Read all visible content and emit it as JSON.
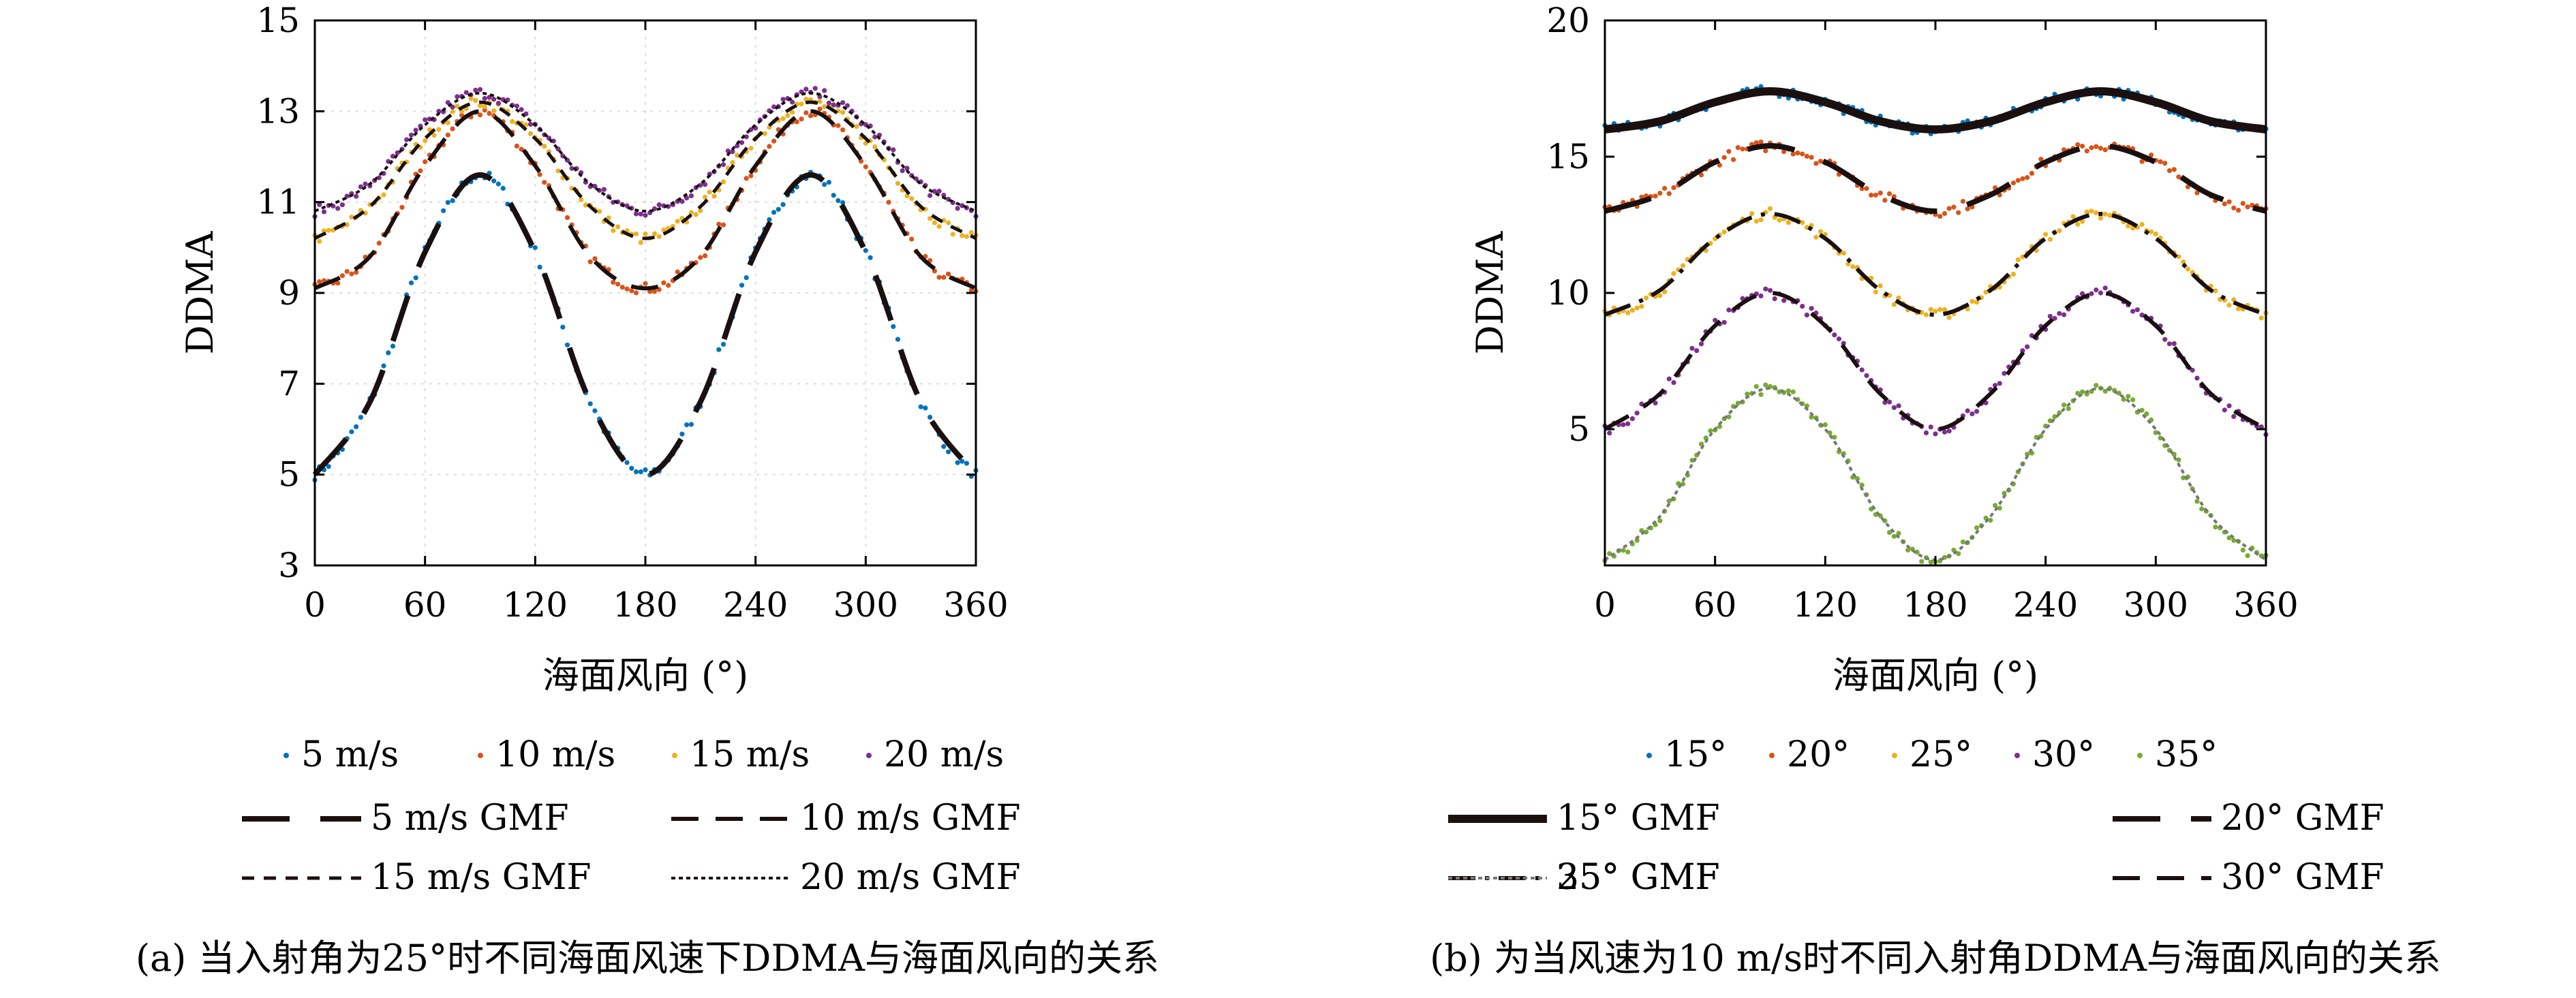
{
  "chart_data": [
    {
      "type": "line",
      "caption": "(a) 当入射角为25°时不同海面风速下DDMA与海面风向的关系",
      "xlabel": "海面风向 (°)",
      "ylabel": "DDMA",
      "xlim": [
        0,
        360
      ],
      "ylim": [
        3,
        15
      ],
      "xticks": [
        "0",
        "60",
        "120",
        "180",
        "240",
        "300",
        "360"
      ],
      "yticks": [
        "3",
        "5",
        "7",
        "9",
        "11",
        "13",
        "15"
      ],
      "grid": true,
      "legend_placement": "bottom",
      "x": [
        0,
        30,
        60,
        90,
        120,
        150,
        180,
        210,
        240,
        270,
        300,
        330,
        360
      ],
      "series": [
        {
          "name": "5 m/s",
          "kind": "points",
          "color": "#0072BD",
          "values": [
            5.0,
            6.6,
            9.9,
            11.6,
            9.9,
            6.6,
            5.0,
            6.6,
            9.9,
            11.6,
            9.9,
            6.6,
            5.0
          ]
        },
        {
          "name": "10 m/s",
          "kind": "points",
          "color": "#D95319",
          "values": [
            9.1,
            9.8,
            11.8,
            13.0,
            11.8,
            9.8,
            9.1,
            9.8,
            11.8,
            13.0,
            11.8,
            9.8,
            9.1
          ]
        },
        {
          "name": "15 m/s",
          "kind": "points",
          "color": "#EDB120",
          "values": [
            10.2,
            10.9,
            12.4,
            13.2,
            12.4,
            10.9,
            10.2,
            10.9,
            12.4,
            13.2,
            12.4,
            10.9,
            10.2
          ]
        },
        {
          "name": "20 m/s",
          "kind": "points",
          "color": "#7E2F8E",
          "values": [
            10.8,
            11.4,
            12.7,
            13.4,
            12.7,
            11.4,
            10.8,
            11.4,
            12.7,
            13.4,
            12.7,
            11.4,
            10.8
          ]
        },
        {
          "name": "5 m/s GMF",
          "kind": "line",
          "color": "#1a1010",
          "style": "dash-long",
          "values": [
            5.0,
            6.6,
            9.9,
            11.6,
            9.9,
            6.6,
            5.0,
            6.6,
            9.9,
            11.6,
            9.9,
            6.6,
            5.0
          ]
        },
        {
          "name": "10 m/s GMF",
          "kind": "line",
          "color": "#1a1010",
          "style": "dash",
          "values": [
            9.1,
            9.8,
            11.8,
            13.0,
            11.8,
            9.8,
            9.1,
            9.8,
            11.8,
            13.0,
            11.8,
            9.8,
            9.1
          ]
        },
        {
          "name": "15 m/s GMF",
          "kind": "line",
          "color": "#1a1010",
          "style": "dash-short",
          "values": [
            10.2,
            10.9,
            12.4,
            13.2,
            12.4,
            10.9,
            10.2,
            10.9,
            12.4,
            13.2,
            12.4,
            10.9,
            10.2
          ]
        },
        {
          "name": "20 m/s GMF",
          "kind": "line",
          "color": "#1a1010",
          "style": "dotted",
          "values": [
            10.8,
            11.4,
            12.7,
            13.4,
            12.7,
            11.4,
            10.8,
            11.4,
            12.7,
            13.4,
            12.7,
            11.4,
            10.8
          ]
        }
      ]
    },
    {
      "type": "line",
      "caption": "(b) 为当风速为10 m/s时不同入射角DDMA与海面风向的关系",
      "xlabel": "海面风向 (°)",
      "ylabel": "DDMA",
      "xlim": [
        0,
        360
      ],
      "ylim": [
        0,
        20
      ],
      "xticks": [
        "0",
        "60",
        "120",
        "180",
        "240",
        "300",
        "360"
      ],
      "yticks": [
        "5",
        "10",
        "15",
        "20"
      ],
      "grid": false,
      "legend_placement": "bottom",
      "x": [
        0,
        30,
        60,
        90,
        120,
        150,
        180,
        210,
        240,
        270,
        300,
        330,
        360
      ],
      "series": [
        {
          "name": "15°",
          "kind": "points",
          "color": "#0072BD",
          "values": [
            16.0,
            16.3,
            17.0,
            17.4,
            17.0,
            16.3,
            16.0,
            16.3,
            17.0,
            17.4,
            17.0,
            16.3,
            16.0
          ]
        },
        {
          "name": "20°",
          "kind": "points",
          "color": "#D95319",
          "values": [
            13.0,
            13.6,
            14.8,
            15.4,
            14.8,
            13.6,
            13.0,
            13.6,
            14.8,
            15.4,
            14.8,
            13.6,
            13.0
          ]
        },
        {
          "name": "25°",
          "kind": "points",
          "color": "#EDB120",
          "values": [
            9.2,
            10.1,
            12.0,
            12.9,
            12.0,
            10.1,
            9.2,
            10.1,
            12.0,
            12.9,
            12.0,
            10.1,
            9.2
          ]
        },
        {
          "name": "30°",
          "kind": "points",
          "color": "#7E2F8E",
          "values": [
            5.0,
            6.3,
            8.8,
            10.0,
            8.8,
            6.3,
            5.0,
            6.3,
            8.8,
            10.0,
            8.8,
            6.3,
            5.0
          ]
        },
        {
          "name": "35°",
          "kind": "points",
          "color": "#77AC30",
          "values": [
            0.2,
            1.8,
            5.0,
            6.5,
            5.0,
            1.8,
            0.2,
            1.8,
            5.0,
            6.5,
            5.0,
            1.8,
            0.2
          ]
        },
        {
          "name": "15° GMF",
          "kind": "line",
          "color": "#1a1010",
          "style": "solid-thick",
          "values": [
            16.0,
            16.3,
            17.0,
            17.4,
            17.0,
            16.3,
            16.0,
            16.3,
            17.0,
            17.4,
            17.0,
            16.3,
            16.0
          ]
        },
        {
          "name": "20° GMF",
          "kind": "line",
          "color": "#1a1010",
          "style": "dash-long",
          "values": [
            13.0,
            13.6,
            14.8,
            15.4,
            14.8,
            13.6,
            13.0,
            13.6,
            14.8,
            15.4,
            14.8,
            13.6,
            13.0
          ]
        },
        {
          "name": "25° GMF",
          "kind": "line",
          "color": "#1a1010",
          "style": "dash-dot",
          "values": [
            9.2,
            10.1,
            12.0,
            12.9,
            12.0,
            10.1,
            9.2,
            10.1,
            12.0,
            12.9,
            12.0,
            10.1,
            9.2
          ]
        },
        {
          "name": "30° GMF",
          "kind": "line",
          "color": "#1a1010",
          "style": "dash",
          "values": [
            5.0,
            6.3,
            8.8,
            10.0,
            8.8,
            6.3,
            5.0,
            6.3,
            8.8,
            10.0,
            8.8,
            6.3,
            5.0
          ]
        },
        {
          "name": "35° GMF",
          "kind": "line",
          "color": "#777777",
          "style": "dotted",
          "values": [
            0.2,
            1.8,
            5.0,
            6.5,
            5.0,
            1.8,
            0.2,
            1.8,
            5.0,
            6.5,
            5.0,
            1.8,
            0.2
          ]
        }
      ]
    }
  ]
}
